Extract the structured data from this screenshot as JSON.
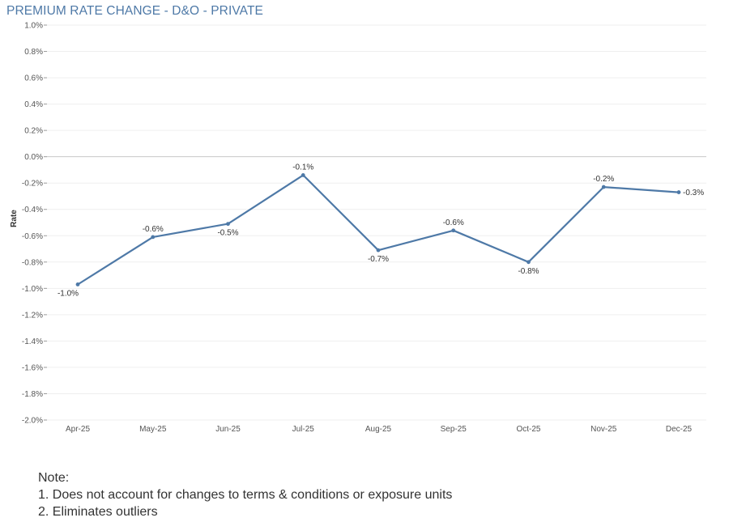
{
  "chart_data": {
    "type": "line",
    "title": "PREMIUM RATE CHANGE - D&O - PRIVATE",
    "ylabel": "Rate",
    "xlabel": "",
    "categories": [
      "Apr-25",
      "May-25",
      "Jun-25",
      "Jul-25",
      "Aug-25",
      "Sep-25",
      "Oct-25",
      "Nov-25",
      "Dec-25"
    ],
    "values": [
      -0.97,
      -0.61,
      -0.51,
      -0.14,
      -0.71,
      -0.56,
      -0.8,
      -0.23,
      -0.27
    ],
    "data_labels": [
      "-1.0%",
      "-0.6%",
      "-0.5%",
      "-0.1%",
      "-0.7%",
      "-0.6%",
      "-0.8%",
      "-0.2%",
      "-0.3%"
    ],
    "label_positions": [
      "below",
      "above",
      "below",
      "above",
      "below",
      "above",
      "below",
      "above",
      "right"
    ],
    "ylim": [
      -2.0,
      1.0
    ],
    "yticks": [
      1.0,
      0.8,
      0.6,
      0.4,
      0.2,
      0.0,
      -0.2,
      -0.4,
      -0.6,
      -0.8,
      -1.0,
      -1.2,
      -1.4,
      -1.6,
      -1.8,
      -2.0
    ],
    "ytick_labels": [
      "1.0%",
      "0.8%",
      "0.6%",
      "0.4%",
      "0.2%",
      "0.0%",
      "-0.2%",
      "-0.4%",
      "-0.6%",
      "-0.8%",
      "-1.0%",
      "-1.2%",
      "-1.4%",
      "-1.6%",
      "-1.8%",
      "-2.0%"
    ],
    "grid": true,
    "colors": {
      "line": "#4e79a7",
      "title": "#4e79a7",
      "grid": "#efefef",
      "zero_line": "#c8c8c8"
    }
  },
  "notes": {
    "heading": "Note:",
    "items": [
      "1. Does not account for changes to terms & conditions or exposure units",
      "2. Eliminates outliers"
    ]
  }
}
